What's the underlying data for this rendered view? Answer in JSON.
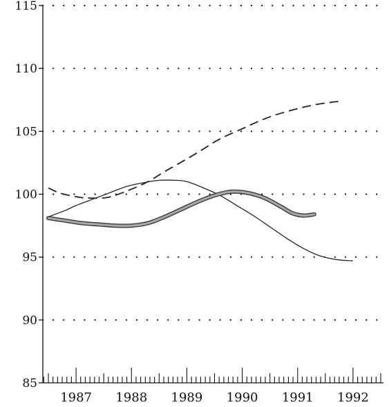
{
  "chart_data": {
    "type": "line",
    "title": "",
    "xlabel": "",
    "ylabel": "",
    "ylim": [
      85,
      115
    ],
    "xlim": [
      1986.4,
      1992.55
    ],
    "grid": "dotted horizontal",
    "y_ticks": [
      85,
      90,
      95,
      100,
      105,
      110,
      115
    ],
    "x_ticks": [
      1987,
      1988,
      1989,
      1990,
      1991,
      1992
    ],
    "series": [
      {
        "style": "dashed",
        "color": "#222222",
        "x": [
          1986.5,
          1986.7,
          1987.0,
          1987.2,
          1987.5,
          1987.7,
          1988.0,
          1988.3,
          1988.6,
          1989.0,
          1989.3,
          1989.6,
          1990.0,
          1990.3,
          1990.6,
          1991.0,
          1991.3,
          1991.6,
          1991.8
        ],
        "y": [
          100.5,
          100.1,
          99.8,
          99.7,
          99.7,
          99.9,
          100.4,
          101.0,
          101.8,
          102.8,
          103.6,
          104.4,
          105.2,
          105.8,
          106.3,
          106.8,
          107.1,
          107.3,
          107.4
        ]
      },
      {
        "style": "thin solid",
        "color": "#222222",
        "x": [
          1986.5,
          1986.8,
          1987.0,
          1987.3,
          1987.6,
          1987.9,
          1988.2,
          1988.5,
          1988.8,
          1989.0,
          1989.3,
          1989.6,
          1989.9,
          1990.2,
          1990.5,
          1990.8,
          1991.1,
          1991.4,
          1991.7,
          1992.0
        ],
        "y": [
          98.2,
          98.7,
          99.1,
          99.6,
          100.1,
          100.6,
          100.9,
          101.1,
          101.1,
          101.0,
          100.5,
          99.9,
          99.1,
          98.3,
          97.4,
          96.5,
          95.7,
          95.1,
          94.8,
          94.7
        ]
      },
      {
        "style": "thick gray",
        "color": "#7a7a7a",
        "x": [
          1986.5,
          1986.8,
          1987.1,
          1987.4,
          1987.7,
          1988.0,
          1988.3,
          1988.6,
          1988.9,
          1989.2,
          1989.5,
          1989.8,
          1990.1,
          1990.4,
          1990.7,
          1990.9,
          1991.1,
          1991.3
        ],
        "y": [
          98.1,
          97.9,
          97.7,
          97.6,
          97.5,
          97.5,
          97.7,
          98.2,
          98.8,
          99.4,
          99.9,
          100.2,
          100.1,
          99.7,
          99.0,
          98.5,
          98.3,
          98.4
        ]
      }
    ]
  }
}
